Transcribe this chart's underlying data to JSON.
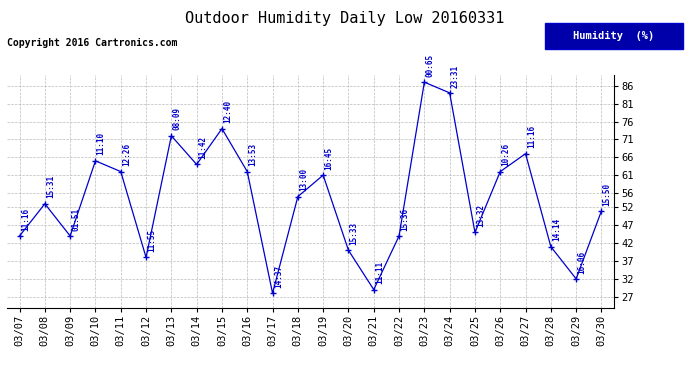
{
  "title": "Outdoor Humidity Daily Low 20160331",
  "copyright": "Copyright 2016 Cartronics.com",
  "legend_label": "Humidity  (%)",
  "background_color": "#ffffff",
  "plot_bg_color": "#ffffff",
  "grid_color": "#bbbbbb",
  "line_color": "#0000cc",
  "marker_color": "#0000cc",
  "text_color": "#0000cc",
  "yticks": [
    27,
    32,
    37,
    42,
    47,
    52,
    56,
    61,
    66,
    71,
    76,
    81,
    86
  ],
  "ylim": [
    24,
    89
  ],
  "dates": [
    "03/07",
    "03/08",
    "03/09",
    "03/10",
    "03/11",
    "03/12",
    "03/13",
    "03/14",
    "03/15",
    "03/16",
    "03/17",
    "03/18",
    "03/19",
    "03/20",
    "03/21",
    "03/22",
    "03/23",
    "03/24",
    "03/25",
    "03/26",
    "03/27",
    "03/28",
    "03/29",
    "03/30"
  ],
  "values": [
    44,
    53,
    44,
    65,
    62,
    38,
    72,
    64,
    74,
    62,
    28,
    55,
    61,
    40,
    29,
    44,
    87,
    84,
    45,
    62,
    67,
    41,
    32,
    51
  ],
  "time_labels": [
    "11:16",
    "15:31",
    "01:51",
    "11:10",
    "12:26",
    "11:55",
    "08:09",
    "11:42",
    "12:40",
    "13:53",
    "14:37",
    "13:00",
    "16:45",
    "15:33",
    "11:11",
    "15:36",
    "00:65",
    "23:31",
    "13:32",
    "10:26",
    "11:16",
    "14:14",
    "16:06",
    "15:50"
  ],
  "title_fontsize": 11,
  "tick_fontsize": 7.5,
  "label_fontsize": 7,
  "copyright_fontsize": 7
}
